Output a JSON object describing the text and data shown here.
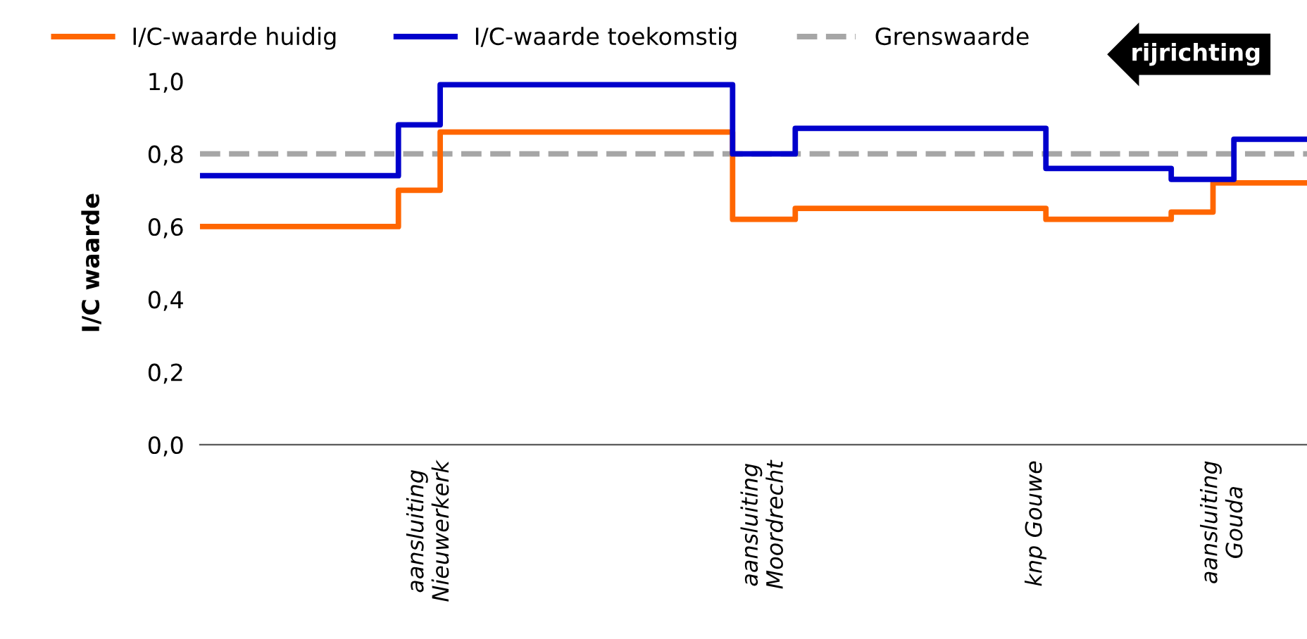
{
  "chart_data": {
    "type": "step",
    "ylabel": "I/C waarde",
    "categories": [
      null,
      null,
      null,
      null,
      null,
      null,
      null,
      null,
      null,
      null,
      null,
      "aansluiting\nNieuwerkerk",
      null,
      null,
      null,
      null,
      null,
      null,
      null,
      null,
      null,
      null,
      null,
      null,
      null,
      null,
      null,
      "aansluiting\nMoordrecht",
      null,
      null,
      null,
      null,
      null,
      null,
      null,
      null,
      null,
      null,
      null,
      null,
      "knp Gouwe",
      null,
      null,
      null,
      null,
      null,
      null,
      null,
      null,
      "aansluiting\nGouda",
      null,
      null,
      null,
      null
    ],
    "ylim": [
      0,
      1.0
    ],
    "yticks": [
      {
        "value": 0,
        "label": "0,0"
      },
      {
        "value": 0.2,
        "label": "0,2"
      },
      {
        "value": 0.4,
        "label": "0,4"
      },
      {
        "value": 0.6,
        "label": "0,6"
      },
      {
        "value": 0.8,
        "label": "0,8"
      },
      {
        "value": 1.0,
        "label": "1,0"
      }
    ],
    "series": [
      {
        "name": "I/C-waarde huidig",
        "color": "#ff6600",
        "values": [
          0.6,
          0.6,
          0.6,
          0.6,
          0.6,
          0.6,
          0.6,
          0.6,
          0.6,
          0.6,
          0.7,
          0.7,
          0.86,
          0.86,
          0.86,
          0.86,
          0.86,
          0.86,
          0.86,
          0.86,
          0.86,
          0.86,
          0.86,
          0.86,
          0.86,
          0.86,
          0.62,
          0.62,
          0.62,
          0.65,
          0.65,
          0.65,
          0.65,
          0.65,
          0.65,
          0.65,
          0.65,
          0.65,
          0.65,
          0.65,
          0.65,
          0.62,
          0.62,
          0.62,
          0.62,
          0.62,
          0.62,
          0.64,
          0.64,
          0.72,
          0.72,
          0.72,
          0.72,
          0.72
        ]
      },
      {
        "name": "I/C-waarde toekomstig",
        "color": "#0000cc",
        "values": [
          0.74,
          0.74,
          0.74,
          0.74,
          0.74,
          0.74,
          0.74,
          0.74,
          0.74,
          0.74,
          0.88,
          0.88,
          0.99,
          0.99,
          0.99,
          0.99,
          0.99,
          0.99,
          0.99,
          0.99,
          0.99,
          0.99,
          0.99,
          0.99,
          0.99,
          0.99,
          0.8,
          0.8,
          0.8,
          0.87,
          0.87,
          0.87,
          0.87,
          0.87,
          0.87,
          0.87,
          0.87,
          0.87,
          0.87,
          0.87,
          0.87,
          0.76,
          0.76,
          0.76,
          0.76,
          0.76,
          0.76,
          0.73,
          0.73,
          0.73,
          0.84,
          0.84,
          0.84,
          0.84
        ]
      }
    ],
    "ref_lines": [
      {
        "axis": "y",
        "value": 0.8,
        "label": "Grenswaarde",
        "color": "#a6a6a6",
        "line_style": "dashed"
      }
    ],
    "annotations": [
      "rijrichting"
    ],
    "grid": false,
    "legend": "top",
    "line_style": "solid",
    "marker": "none"
  }
}
